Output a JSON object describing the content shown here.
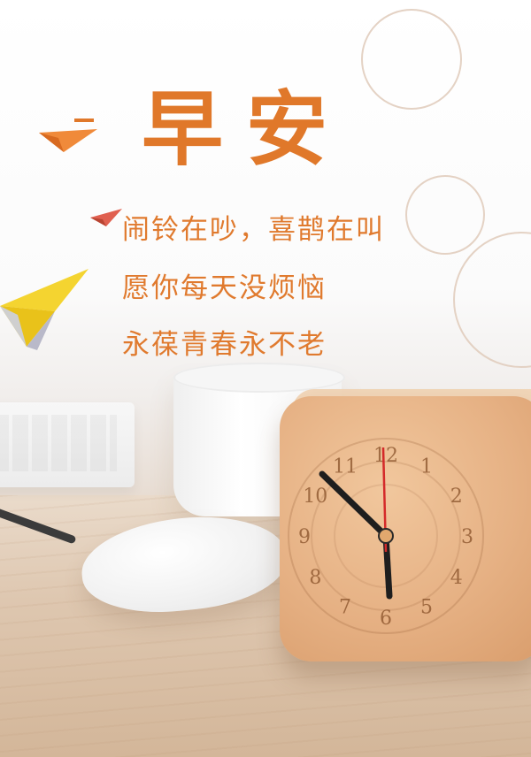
{
  "title": "早安",
  "lines": [
    "闹铃在吵，喜鹊在叫",
    "愿你每天没烦恼",
    "永葆青春永不老"
  ],
  "clock_numbers": [
    "1",
    "2",
    "3",
    "4",
    "5",
    "6",
    "7",
    "8",
    "9",
    "10",
    "11",
    "12"
  ],
  "colors": {
    "accent": "#e0782a",
    "yellow_plane": "#f4d430",
    "wood": "#e6b184"
  },
  "icons": [
    "paper-plane-icon",
    "clock-icon",
    "mouse-icon",
    "cup-icon"
  ]
}
